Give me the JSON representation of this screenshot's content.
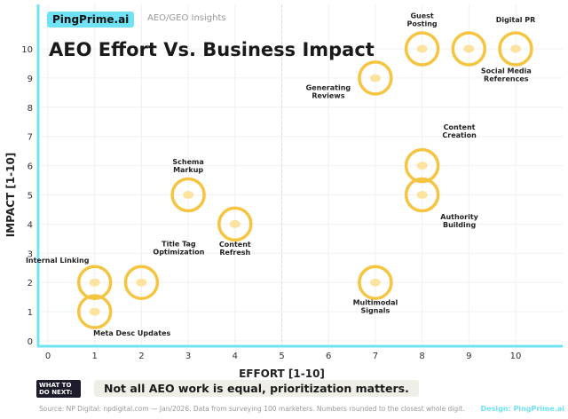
{
  "header": {
    "brand": "PingPrime.ai",
    "subtitle": "AEO/GEO Insights"
  },
  "chart_data": {
    "type": "scatter",
    "title": "AEO Effort Vs. Business Impact",
    "xlabel": "EFFORT [1-10]",
    "ylabel": "IMPACT [1-10]",
    "xlim": [
      0,
      10
    ],
    "ylim": [
      0,
      10
    ],
    "xticks": [
      "0",
      "1",
      "2",
      "3",
      "4",
      "5",
      "6",
      "7",
      "8",
      "9",
      "10"
    ],
    "yticks": [
      "0",
      "1",
      "2",
      "3",
      "4",
      "5",
      "6",
      "7",
      "8",
      "9",
      "10"
    ],
    "grid": true,
    "colors": {
      "marker": "#f5c542",
      "marker_fill": "#fde3a0",
      "axis": "#6fe3f5"
    },
    "points": [
      {
        "label": "Guest Posting",
        "x": 8,
        "y": 10,
        "pos": "above"
      },
      {
        "label": "Social Media References",
        "x": 9,
        "y": 10,
        "pos": "below-right"
      },
      {
        "label": "Digital PR",
        "x": 10,
        "y": 10,
        "pos": "above"
      },
      {
        "label": "Generating Reviews",
        "x": 7,
        "y": 9,
        "pos": "below-left"
      },
      {
        "label": "Content Creation",
        "x": 8,
        "y": 6,
        "pos": "above-right"
      },
      {
        "label": "Authority Building",
        "x": 8,
        "y": 5,
        "pos": "below-right"
      },
      {
        "label": "Schema Markup",
        "x": 3,
        "y": 5,
        "pos": "above"
      },
      {
        "label": "Content Refresh",
        "x": 4,
        "y": 4,
        "pos": "below"
      },
      {
        "label": "Title Tag Optimization",
        "x": 2,
        "y": 2,
        "pos": "above-right"
      },
      {
        "label": "Internal Linking",
        "x": 1,
        "y": 2,
        "pos": "above-left"
      },
      {
        "label": "Meta Desc Updates",
        "x": 1,
        "y": 1,
        "pos": "below-right"
      },
      {
        "label": "Multimodal Signals",
        "x": 7,
        "y": 2,
        "pos": "below"
      }
    ]
  },
  "footer": {
    "what_next": "WHAT TO DO NEXT:",
    "message": "Not all AEO work is equal, prioritization matters.",
    "source": "Source: NP Digital: npdigital.com — Jan/2026. Data from surveying 100 marketers. Numbers rounded to the closest whole digit.",
    "design": "Design: PingPrime.ai"
  }
}
